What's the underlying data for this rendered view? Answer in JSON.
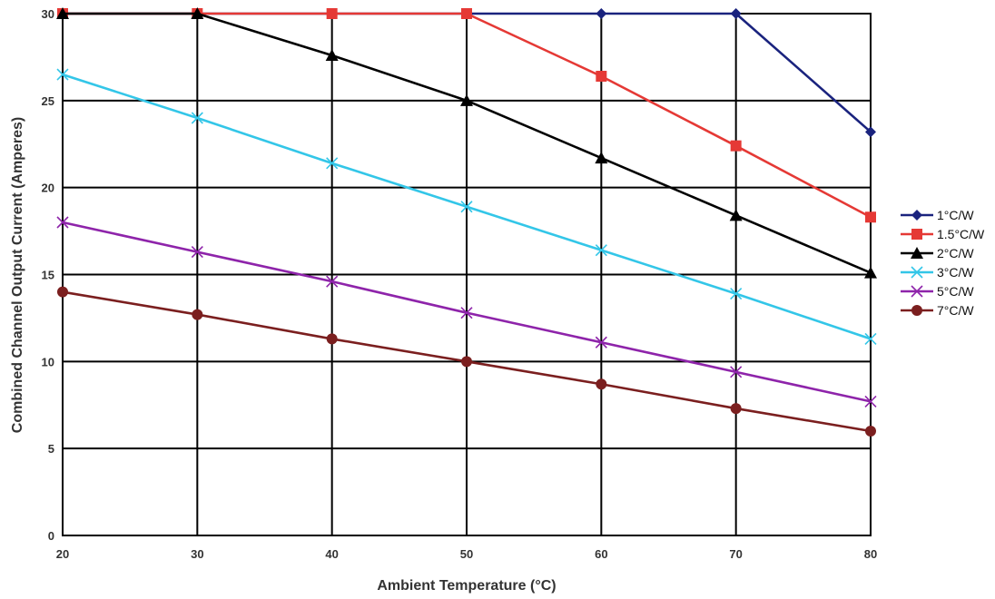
{
  "chart_data": {
    "type": "line",
    "title": "",
    "xlabel": "Ambient Temperature (°C)",
    "ylabel": "Combined Channel Output Current (Amperes)",
    "x": [
      20,
      30,
      40,
      50,
      60,
      70,
      80
    ],
    "xlim": [
      20,
      80
    ],
    "ylim": [
      0,
      30
    ],
    "xticks": [
      "20",
      "30",
      "40",
      "50",
      "60",
      "70",
      "80"
    ],
    "yticks": [
      "0",
      "5",
      "10",
      "15",
      "20",
      "25",
      "30"
    ],
    "grid": true,
    "legend_position": "right",
    "series": [
      {
        "name": "1°C/W",
        "color": "#1a237e",
        "marker": "diamond",
        "values": [
          30,
          30,
          30,
          30,
          30,
          30,
          23.2
        ]
      },
      {
        "name": "1.5°C/W",
        "color": "#e53935",
        "marker": "square",
        "values": [
          30,
          30,
          30,
          30,
          26.4,
          22.4,
          18.3
        ]
      },
      {
        "name": "2°C/W",
        "color": "#000000",
        "marker": "triangle",
        "values": [
          30,
          30,
          27.6,
          25,
          21.7,
          18.4,
          15.1
        ]
      },
      {
        "name": "3°C/W",
        "color": "#33c6e8",
        "marker": "x",
        "values": [
          26.5,
          24,
          21.4,
          18.9,
          16.4,
          13.9,
          11.3
        ]
      },
      {
        "name": "5°C/W",
        "color": "#8e24aa",
        "marker": "x",
        "values": [
          18,
          16.3,
          14.6,
          12.8,
          11.1,
          9.4,
          7.7
        ]
      },
      {
        "name": "7°C/W",
        "color": "#7b1f1f",
        "marker": "circle",
        "values": [
          14,
          12.7,
          11.3,
          10,
          8.7,
          7.3,
          6
        ]
      }
    ]
  }
}
